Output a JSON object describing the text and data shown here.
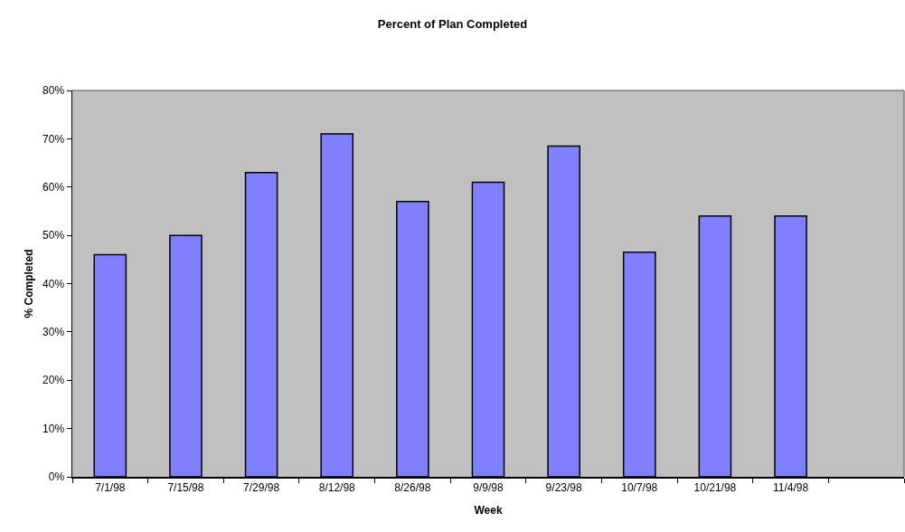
{
  "chart_data": {
    "type": "bar",
    "title": "Percent of Plan Completed",
    "xlabel": "Week",
    "ylabel": "% Completed",
    "categories": [
      "7/1/98",
      "7/15/98",
      "7/29/98",
      "8/12/98",
      "8/26/98",
      "9/9/98",
      "9/23/98",
      "10/7/98",
      "10/21/98",
      "11/4/98",
      null
    ],
    "series": [
      {
        "color": "#8080ff",
        "values": [
          46,
          50,
          63,
          71,
          57,
          61,
          68.5,
          46.5,
          54,
          54,
          null
        ]
      }
    ],
    "ylim": [
      0,
      80
    ],
    "yticks": [
      {
        "value": 0,
        "label": "0%"
      },
      {
        "value": 10,
        "label": "10%"
      },
      {
        "value": 20,
        "label": "20%"
      },
      {
        "value": 30,
        "label": "30%"
      },
      {
        "value": 40,
        "label": "40%"
      },
      {
        "value": 50,
        "label": "50%"
      },
      {
        "value": 60,
        "label": "60%"
      },
      {
        "value": 70,
        "label": "70%"
      },
      {
        "value": 80,
        "label": "80%"
      }
    ],
    "grid": false
  }
}
